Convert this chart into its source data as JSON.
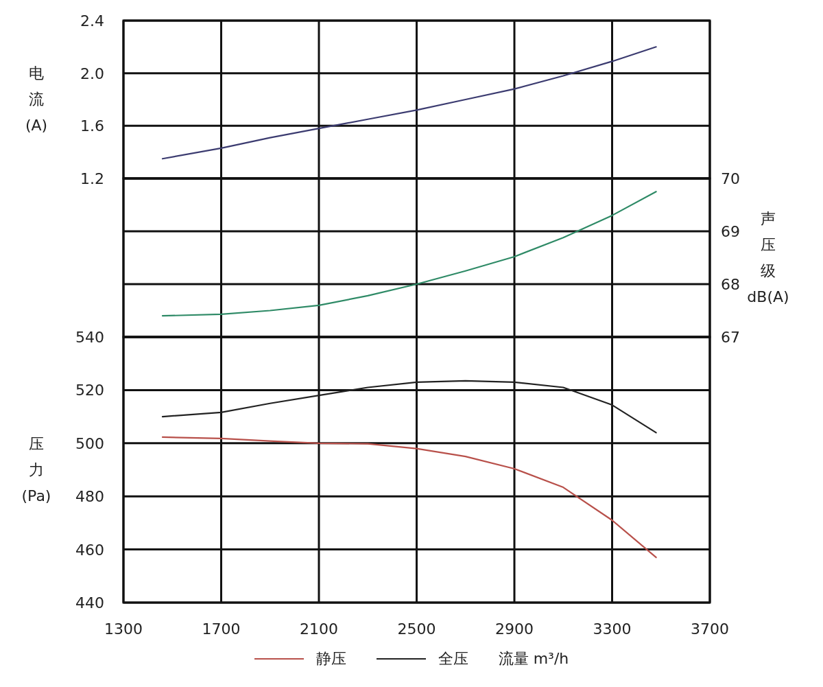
{
  "chart_data": [
    {
      "type": "line",
      "ylabel": "电流(A)",
      "xlim": [
        1300,
        3700
      ],
      "xticks": [
        1300,
        1700,
        2100,
        2500,
        2900,
        3300,
        3700
      ],
      "ylim": [
        1.2,
        2.4
      ],
      "yticks": [
        1.2,
        1.6,
        {
          "value": 2,
          "label": "2.0"
        },
        2.4
      ],
      "grid": true,
      "tick_labels": "y",
      "series": [
        {
          "color": "#3b3b70",
          "x": [
            1460,
            1700,
            1900,
            2100,
            2300,
            2500,
            2700,
            2900,
            3100,
            3300,
            3480
          ],
          "values": [
            1.35,
            1.43,
            1.51,
            1.58,
            1.65,
            1.72,
            1.8,
            1.88,
            1.98,
            2.09,
            2.2
          ]
        }
      ]
    },
    {
      "type": "line",
      "ylabel": "声压级dB(A)",
      "xlim": [
        1300,
        3700
      ],
      "xticks": [
        1300,
        1700,
        2100,
        2500,
        2900,
        3300,
        3700
      ],
      "ylim": [
        67,
        70
      ],
      "yticks": [
        67,
        68,
        69,
        70
      ],
      "grid": true,
      "tick_labels": "y",
      "series": [
        {
          "color": "#2e8a66",
          "x": [
            1460,
            1700,
            1900,
            2100,
            2300,
            2500,
            2700,
            2900,
            3100,
            3300,
            3480
          ],
          "values": [
            67.4,
            67.43,
            67.5,
            67.6,
            67.78,
            68.0,
            68.25,
            68.52,
            68.88,
            69.3,
            69.75
          ]
        }
      ]
    },
    {
      "type": "line",
      "ylabel": "压力(Pa)",
      "xlabel": "流量 m³/h",
      "xlim": [
        1300,
        3700
      ],
      "xticks": [
        1300,
        1700,
        2100,
        2500,
        2900,
        3300,
        3700
      ],
      "ylim": [
        440,
        540
      ],
      "yticks": [
        440,
        460,
        480,
        500,
        520,
        540
      ],
      "grid": true,
      "legend": "bottom",
      "series": [
        {
          "name": "静压",
          "color": "#b8504a",
          "x": [
            1460,
            1700,
            1900,
            2100,
            2300,
            2500,
            2700,
            2900,
            3100,
            3300,
            3480
          ],
          "values": [
            502.3,
            501.8,
            500.8,
            500,
            499.8,
            498,
            495,
            490.4,
            483.4,
            471,
            457
          ]
        },
        {
          "name": "全压",
          "color": "#222222",
          "x": [
            1460,
            1700,
            1900,
            2100,
            2300,
            2500,
            2700,
            2900,
            3100,
            3300,
            3480
          ],
          "values": [
            510,
            511.6,
            515,
            518,
            521,
            523,
            523.5,
            523,
            521,
            514.4,
            504
          ]
        }
      ]
    }
  ]
}
